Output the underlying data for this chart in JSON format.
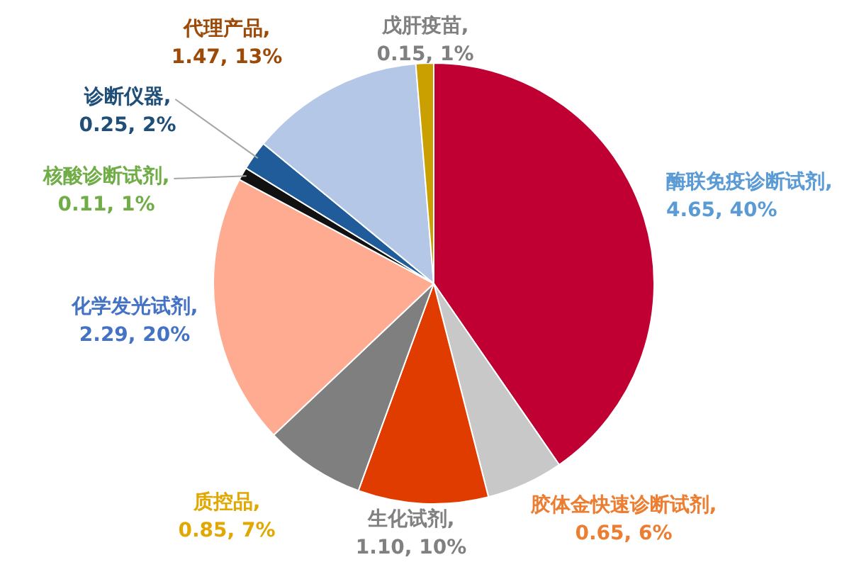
{
  "chart_data": {
    "type": "pie",
    "categories": [
      "酶联免疫诊断试剂",
      "胶体金快速诊断试剂",
      "生化试剂",
      "质控品",
      "化学发光试剂",
      "核酸诊断试剂",
      "诊断仪器",
      "代理产品",
      "戊肝疫苗"
    ],
    "values": [
      4.65,
      0.65,
      1.1,
      0.85,
      2.29,
      0.11,
      0.25,
      1.47,
      0.15
    ],
    "value_labels": [
      ", 4.65, 40%",
      ", 0.65, 6%",
      ", 1.10, 10%",
      ", 0.85, 7%",
      ", 2.29, 20%",
      ", 0.11, 1%",
      ", 0.25, 2%",
      ", 1.47, 13%",
      ", 0.15, 1%"
    ],
    "colors": [
      "#c00032",
      "#c8c8c8",
      "#e03c00",
      "#7f7f7f",
      "#ffab91",
      "#111111",
      "#1f5c99",
      "#b4c7e7",
      "#c9a000"
    ],
    "legend": false
  }
}
